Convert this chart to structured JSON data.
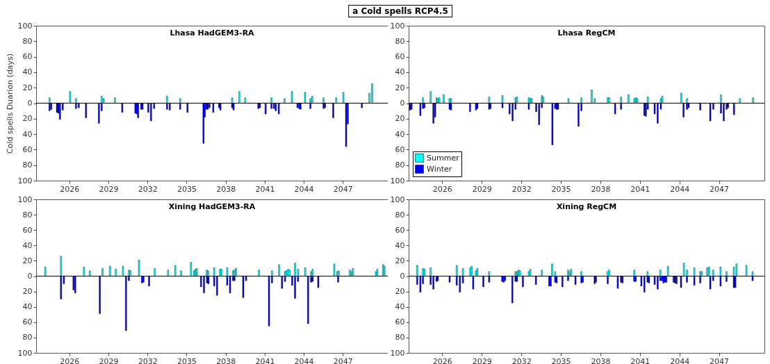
{
  "chart_data": [
    {
      "type": "bar",
      "title": "Lhasa HadGEM3-RA",
      "ylabel": "Cold spells Duarion (days)",
      "annotations": [
        "a Cold spells RCP4.5"
      ],
      "xlim": [
        2023.45,
        2050.45
      ],
      "xticks": [
        2026,
        2029,
        2032,
        2035,
        2038,
        2041,
        2044,
        2047
      ],
      "ylim": [
        -100,
        100
      ],
      "yticks": [
        {
          "value": -100,
          "label": "100"
        },
        {
          "value": -80,
          "label": "80"
        },
        {
          "value": -60,
          "label": "60"
        },
        {
          "value": -40,
          "label": "40"
        },
        {
          "value": -20,
          "label": "20"
        },
        0,
        20,
        40,
        60,
        80,
        100
      ],
      "ref_lines": [
        {
          "axis": "y",
          "value": 0
        }
      ],
      "series": [
        {
          "color": "#00ffff",
          "x": [
            2024.48,
            2026.06,
            2026.51,
            2028.48,
            2028.63,
            2029.5,
            2033.5,
            2034.51,
            2038.5,
            2039.05,
            2039.5,
            2041.52,
            2042.53,
            2043.09,
            2044.1,
            2044.51,
            2044.65,
            2045.52,
            2046.49,
            2047.04,
            2049.04,
            2049.25
          ],
          "values": [
            7,
            15,
            6,
            9,
            6,
            7,
            9,
            6,
            7,
            15,
            7,
            7,
            6,
            15,
            14,
            6,
            9,
            7,
            7,
            14,
            13,
            25
          ]
        },
        {
          "color": "#0000ff",
          "x": [
            2024.48,
            2024.61,
            2025.05,
            2025.16,
            2025.28,
            2025.49,
            2026.51,
            2026.72,
            2027.28,
            2028.27,
            2028.48,
            2030.06,
            2031.07,
            2031.18,
            2031.28,
            2031.52,
            2031.62,
            2032.06,
            2032.27,
            2032.51,
            2033.5,
            2033.71,
            2034.51,
            2035.07,
            2036.3,
            2036.4,
            2036.53,
            2036.63,
            2036.76,
            2037.05,
            2037.5,
            2037.6,
            2038.5,
            2038.61,
            2040.51,
            2040.63,
            2041.07,
            2041.52,
            2041.71,
            2041.85,
            2042.08,
            2043.52,
            2043.66,
            2043.75,
            2044.51,
            2045.52,
            2045.63,
            2046.26,
            2047.25,
            2047.38,
            2048.46
          ],
          "values": [
            -10,
            -8,
            -12,
            -13,
            -21,
            -9,
            -7,
            -6,
            -19,
            -26,
            -10,
            -12,
            -13,
            -14,
            -19,
            -8,
            -8,
            -12,
            -23,
            -7,
            -8,
            -9,
            -8,
            -12,
            -52,
            -18,
            -8,
            -8,
            -6,
            -12,
            -6,
            -9,
            -6,
            -9,
            -7,
            -6,
            -14,
            -7,
            -7,
            -10,
            -14,
            -6,
            -7,
            -8,
            -7,
            -7,
            -6,
            -19,
            -56,
            -27,
            -6
          ]
        }
      ]
    },
    {
      "type": "bar",
      "title": "Lhasa RegCM",
      "legend": "bottom left",
      "xlim": [
        2023.45,
        2050.45
      ],
      "xticks": [
        2026,
        2029,
        2032,
        2035,
        2038,
        2041,
        2044,
        2047
      ],
      "ylim": [
        -100,
        100
      ],
      "yticks": [
        {
          "value": -100,
          "label": "100"
        },
        {
          "value": -80,
          "label": "80"
        },
        {
          "value": -60,
          "label": "60"
        },
        {
          "value": -40,
          "label": "40"
        },
        {
          "value": -20,
          "label": "20"
        },
        0,
        20,
        40,
        60,
        80,
        100
      ],
      "ref_lines": [
        {
          "axis": "y",
          "value": 0
        }
      ],
      "series": [
        {
          "name": "Summer",
          "color": "#00ffff",
          "x": [
            2024.54,
            2025.12,
            2025.57,
            2025.66,
            2025.78,
            2026.11,
            2026.56,
            2026.67,
            2029.56,
            2030.57,
            2031.56,
            2031.67,
            2032.57,
            2032.68,
            2032.79,
            2033.56,
            2033.67,
            2035.58,
            2036.56,
            2037.34,
            2037.57,
            2038.56,
            2038.67,
            2039.57,
            2040.13,
            2040.58,
            2040.69,
            2040.8,
            2041.6,
            2042.59,
            2042.7,
            2044.14,
            2044.57,
            2047.15,
            2048.59,
            2049.59
          ],
          "values": [
            7,
            15,
            7,
            6,
            7,
            11,
            6,
            6,
            8,
            10,
            7,
            8,
            7,
            6,
            6,
            10,
            8,
            6,
            7,
            17,
            6,
            7,
            7,
            8,
            11,
            6,
            7,
            6,
            8,
            6,
            9,
            13,
            6,
            11,
            6,
            7
          ]
        },
        {
          "name": "Winter",
          "color": "#0000ff",
          "x": [
            2023.55,
            2023.67,
            2024.34,
            2024.54,
            2024.65,
            2025.33,
            2025.46,
            2026.56,
            2026.67,
            2028.11,
            2028.56,
            2028.67,
            2029.56,
            2029.66,
            2030.57,
            2031.11,
            2031.34,
            2031.56,
            2032.57,
            2033.13,
            2033.35,
            2033.56,
            2034.36,
            2034.57,
            2034.68,
            2034.79,
            2036.34,
            2036.56,
            2039.12,
            2039.57,
            2041.34,
            2041.45,
            2041.6,
            2042.12,
            2042.35,
            2042.59,
            2044.31,
            2044.57,
            2044.7,
            2045.58,
            2046.34,
            2046.57,
            2047.15,
            2047.36,
            2047.58,
            2047.69,
            2048.14
          ],
          "values": [
            -9,
            -8,
            -16,
            -7,
            -6,
            -26,
            -18,
            -8,
            -9,
            -11,
            -9,
            -7,
            -8,
            -7,
            -6,
            -14,
            -23,
            -8,
            -8,
            -11,
            -28,
            -6,
            -54,
            -7,
            -8,
            -8,
            -30,
            -10,
            -14,
            -8,
            -16,
            -17,
            -8,
            -14,
            -26,
            -8,
            -18,
            -8,
            -6,
            -9,
            -23,
            -8,
            -13,
            -23,
            -8,
            -6,
            -15
          ]
        }
      ]
    },
    {
      "type": "bar",
      "title": "Xining HadGEM3-RA",
      "xlim": [
        2023.45,
        2050.45
      ],
      "xticks": [
        2026,
        2029,
        2032,
        2035,
        2038,
        2041,
        2044,
        2047
      ],
      "ylim": [
        -100,
        100
      ],
      "yticks": [
        {
          "value": -100,
          "label": "100"
        },
        {
          "value": -80,
          "label": "80"
        },
        {
          "value": -60,
          "label": "60"
        },
        {
          "value": -40,
          "label": "40"
        },
        {
          "value": -20,
          "label": "20"
        },
        0,
        20,
        40,
        60,
        80,
        100
      ],
      "ref_lines": [
        {
          "axis": "y",
          "value": 0
        }
      ],
      "series": [
        {
          "color": "#00ffff",
          "x": [
            2024.15,
            2025.36,
            2027.12,
            2027.57,
            2028.55,
            2029.12,
            2029.57,
            2030.12,
            2030.57,
            2030.69,
            2031.35,
            2032.56,
            2033.58,
            2034.13,
            2034.58,
            2035.34,
            2035.57,
            2035.68,
            2035.79,
            2036.55,
            2036.66,
            2037.12,
            2037.57,
            2037.68,
            2038.12,
            2038.57,
            2038.68,
            2038.8,
            2040.56,
            2041.56,
            2042.11,
            2042.56,
            2042.67,
            2042.79,
            2042.9,
            2043.33,
            2043.56,
            2044.11,
            2044.56,
            2044.68,
            2046.34,
            2046.57,
            2046.68,
            2047.53,
            2047.66,
            2047.77,
            2049.54,
            2049.65,
            2050.09,
            2050.2
          ],
          "values": [
            12,
            26,
            12,
            7,
            10,
            13,
            9,
            13,
            8,
            7,
            21,
            10,
            8,
            14,
            7,
            18,
            7,
            9,
            10,
            8,
            7,
            11,
            9,
            9,
            11,
            7,
            8,
            10,
            8,
            7,
            15,
            6,
            7,
            9,
            8,
            17,
            9,
            11,
            6,
            9,
            16,
            6,
            7,
            8,
            6,
            10,
            6,
            9,
            15,
            13
          ]
        },
        {
          "color": "#0000ff",
          "x": [
            2025.36,
            2025.58,
            2026.32,
            2026.45,
            2028.34,
            2030.35,
            2030.57,
            2031.58,
            2031.69,
            2032.12,
            2036.11,
            2036.34,
            2036.57,
            2036.68,
            2037.12,
            2037.34,
            2038.12,
            2038.34,
            2038.57,
            2038.68,
            2039.35,
            2039.57,
            2041.33,
            2041.56,
            2042.33,
            2042.56,
            2043.11,
            2043.33,
            2043.56,
            2044.33,
            2044.56,
            2044.68,
            2045.11,
            2046.64
          ],
          "values": [
            -30,
            -10,
            -18,
            -22,
            -49,
            -71,
            -6,
            -9,
            -8,
            -13,
            -14,
            -22,
            -9,
            -10,
            -13,
            -25,
            -12,
            -22,
            -6,
            -6,
            -28,
            -6,
            -65,
            -9,
            -16,
            -7,
            -12,
            -29,
            -7,
            -62,
            -8,
            -7,
            -15,
            -8
          ]
        }
      ]
    },
    {
      "type": "bar",
      "title": "Xining RegCM",
      "xlim": [
        2023.45,
        2050.45
      ],
      "xticks": [
        2026,
        2029,
        2032,
        2035,
        2038,
        2041,
        2044,
        2047
      ],
      "ylim": [
        -100,
        100
      ],
      "yticks": [
        {
          "value": -100,
          "label": "100"
        },
        {
          "value": -80,
          "label": "80"
        },
        {
          "value": -60,
          "label": "60"
        },
        {
          "value": -40,
          "label": "40"
        },
        {
          "value": -20,
          "label": "20"
        },
        0,
        20,
        40,
        60,
        80,
        100
      ],
      "ref_lines": [
        {
          "axis": "y",
          "value": 0
        }
      ],
      "series": [
        {
          "color": "#00ffff",
          "x": [
            2024.1,
            2024.54,
            2024.66,
            2025.12,
            2027.1,
            2027.57,
            2028.13,
            2028.24,
            2028.56,
            2028.67,
            2029.56,
            2031.56,
            2031.67,
            2031.78,
            2031.9,
            2032.57,
            2032.68,
            2033.56,
            2034.34,
            2034.57,
            2035.55,
            2035.66,
            2035.78,
            2036.56,
            2038.56,
            2038.67,
            2040.57,
            2041.58,
            2042.55,
            2043.13,
            2044.34,
            2044.57,
            2045.13,
            2045.58,
            2045.69,
            2046.11,
            2046.25,
            2046.56,
            2047.12,
            2047.57,
            2048.13,
            2048.33,
            2049.08,
            2049.55
          ],
          "values": [
            14,
            10,
            9,
            11,
            14,
            10,
            11,
            13,
            7,
            10,
            6,
            6,
            6,
            8,
            7,
            6,
            9,
            8,
            16,
            6,
            8,
            6,
            9,
            6,
            6,
            8,
            8,
            6,
            8,
            13,
            17,
            8,
            11,
            6,
            6,
            11,
            12,
            8,
            12,
            6,
            12,
            16,
            14,
            6
          ]
        },
        {
          "color": "#0000ff",
          "x": [
            2024.1,
            2024.34,
            2024.54,
            2025.12,
            2025.33,
            2025.57,
            2025.66,
            2026.56,
            2027.1,
            2027.34,
            2027.57,
            2028.35,
            2029.12,
            2029.56,
            2030.55,
            2030.66,
            2030.77,
            2031.32,
            2031.56,
            2031.67,
            2032.12,
            2033.11,
            2034.12,
            2034.23,
            2034.57,
            2034.68,
            2035.12,
            2035.55,
            2036.11,
            2036.56,
            2036.67,
            2037.57,
            2037.66,
            2038.56,
            2039.32,
            2039.57,
            2039.68,
            2040.57,
            2040.68,
            2041.11,
            2041.34,
            2041.58,
            2041.69,
            2042.12,
            2042.35,
            2042.55,
            2042.68,
            2042.79,
            2042.9,
            2043.0,
            2043.56,
            2043.67,
            2043.78,
            2044.12,
            2044.57,
            2045.13,
            2045.58,
            2046.34,
            2046.56,
            2047.12,
            2047.57,
            2048.13,
            2048.24,
            2049.55
          ],
          "values": [
            -11,
            -21,
            -10,
            -11,
            -17,
            -7,
            -6,
            -8,
            -12,
            -21,
            -9,
            -17,
            -14,
            -8,
            -7,
            -8,
            -6,
            -35,
            -7,
            -7,
            -14,
            -11,
            -13,
            -13,
            -8,
            -9,
            -14,
            -6,
            -11,
            -9,
            -8,
            -10,
            -8,
            -10,
            -16,
            -8,
            -9,
            -7,
            -7,
            -13,
            -21,
            -8,
            -9,
            -11,
            -17,
            -6,
            -6,
            -9,
            -8,
            -8,
            -8,
            -9,
            -10,
            -15,
            -8,
            -12,
            -9,
            -17,
            -6,
            -13,
            -7,
            -15,
            -15,
            -6
          ]
        }
      ]
    }
  ]
}
